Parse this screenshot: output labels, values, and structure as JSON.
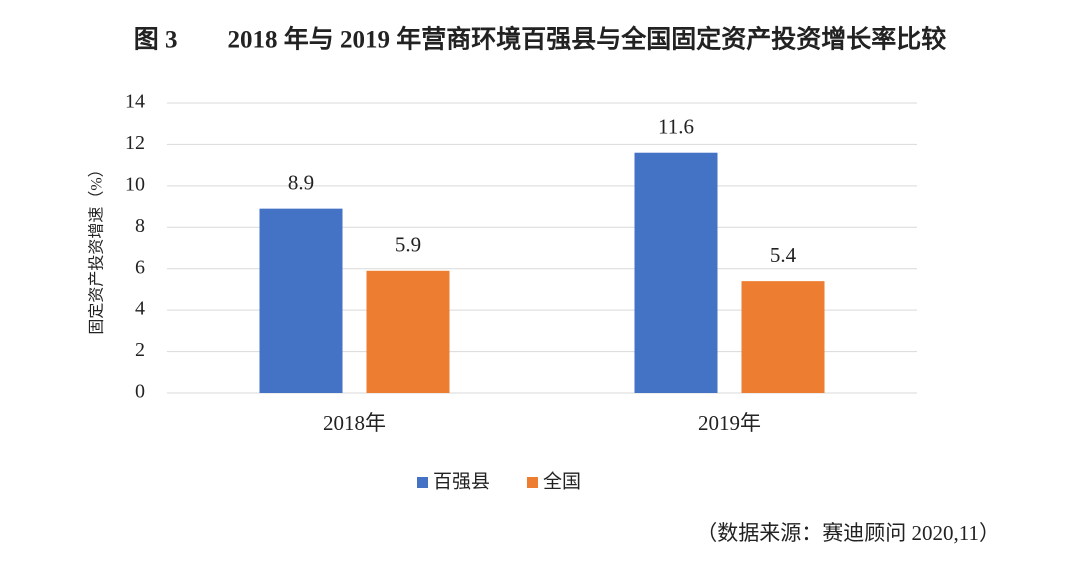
{
  "chart_data": {
    "type": "bar",
    "title": "图 3　　2018 年与 2019 年营商环境百强县与全国固定资产投资增长率比较",
    "y_label": "固定资产投资增速（%）",
    "categories": [
      "2018年",
      "2019年"
    ],
    "series": [
      {
        "name": "百强县",
        "color": "#4472c4",
        "values": [
          8.9,
          11.6
        ]
      },
      {
        "name": "全国",
        "color": "#ed7d31",
        "values": [
          5.9,
          5.4
        ]
      }
    ],
    "ylim": [
      0,
      14
    ],
    "yticks": [
      0,
      2,
      4,
      6,
      8,
      10,
      12,
      14
    ],
    "grid": true,
    "legend": "bottom",
    "source": "（数据来源：赛迪顾问  2020,11）"
  }
}
